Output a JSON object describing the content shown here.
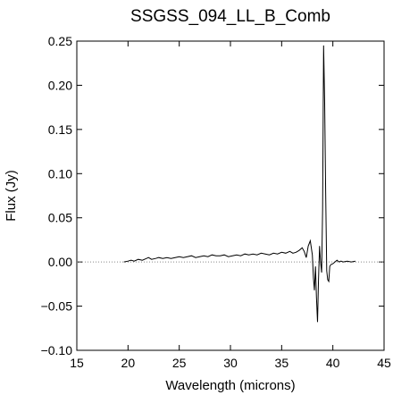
{
  "chart_data": {
    "type": "line",
    "title": "SSGSS_094_LL_B_Comb",
    "xlabel": "Wavelength (microns)",
    "ylabel": "Flux (Jy)",
    "xlim": [
      15,
      45
    ],
    "ylim": [
      -0.1,
      0.25
    ],
    "x_ticks": [
      "15",
      "20",
      "25",
      "30",
      "35",
      "40",
      "45"
    ],
    "y_ticks": [
      "−0.10",
      "−0.05",
      "0.00",
      "0.05",
      "0.10",
      "0.15",
      "0.20",
      "0.25"
    ],
    "x_tick_values": [
      15,
      20,
      25,
      30,
      35,
      40,
      45
    ],
    "y_tick_values": [
      -0.1,
      -0.05,
      0.0,
      0.05,
      0.1,
      0.15,
      0.2,
      0.25
    ],
    "reference_line": {
      "y": 0.0,
      "style": "dotted"
    },
    "grid": false,
    "line_color": "#000000",
    "series": [
      {
        "x": [
          19.6,
          20.0,
          20.3,
          20.6,
          21.0,
          21.4,
          21.8,
          22.0,
          22.3,
          22.7,
          23.0,
          23.4,
          23.8,
          24.2,
          24.6,
          25.0,
          25.4,
          25.8,
          26.2,
          26.6,
          27.0,
          27.4,
          27.8,
          28.2,
          28.6,
          29.0,
          29.4,
          29.8,
          30.2,
          30.6,
          31.0,
          31.4,
          31.8,
          32.2,
          32.6,
          33.0,
          33.4,
          33.8,
          34.2,
          34.6,
          35.0,
          35.4,
          35.8,
          36.1,
          36.4,
          36.7,
          37.0,
          37.2,
          37.4,
          37.6,
          37.8,
          38.0,
          38.1,
          38.2,
          38.3,
          38.4,
          38.5,
          38.6,
          38.7,
          38.8,
          38.9,
          39.0,
          39.1,
          39.2,
          39.3,
          39.4,
          39.5,
          39.6,
          39.7,
          39.8,
          40.0,
          40.2,
          40.4,
          40.6,
          40.8,
          41.0,
          41.4,
          41.8,
          42.2
        ],
        "y": [
          0.0,
          0.001,
          0.002,
          0.001,
          0.003,
          0.002,
          0.004,
          0.005,
          0.003,
          0.004,
          0.005,
          0.004,
          0.005,
          0.004,
          0.005,
          0.006,
          0.005,
          0.006,
          0.007,
          0.005,
          0.006,
          0.007,
          0.006,
          0.008,
          0.007,
          0.007,
          0.008,
          0.006,
          0.007,
          0.008,
          0.007,
          0.009,
          0.008,
          0.009,
          0.008,
          0.01,
          0.009,
          0.008,
          0.01,
          0.009,
          0.011,
          0.01,
          0.012,
          0.01,
          0.011,
          0.013,
          0.016,
          0.012,
          0.005,
          0.018,
          0.024,
          0.008,
          -0.018,
          -0.032,
          -0.005,
          -0.04,
          -0.068,
          -0.02,
          0.018,
          0.0,
          -0.012,
          0.06,
          0.245,
          0.18,
          0.08,
          -0.01,
          -0.02,
          -0.022,
          -0.005,
          -0.003,
          -0.002,
          0.0,
          0.002,
          0.0,
          0.001,
          0.0,
          0.001,
          0.0,
          0.001
        ]
      }
    ]
  }
}
